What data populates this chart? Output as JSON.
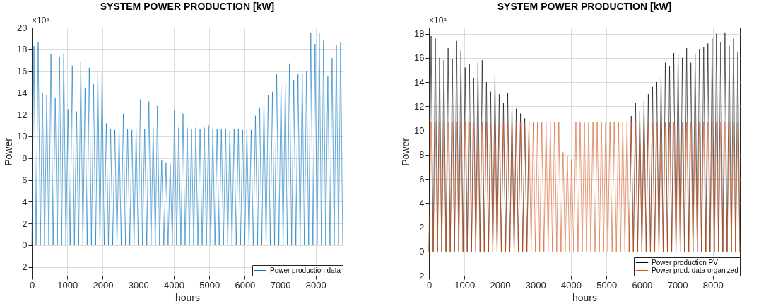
{
  "chart_data": [
    {
      "type": "line",
      "title": "SYSTEM POWER PRODUCTION [kW]",
      "xlabel": "hours",
      "ylabel": "Power",
      "annotations": [
        "×10⁴"
      ],
      "x": [
        0,
        60,
        120,
        180,
        240,
        300,
        360,
        420,
        480,
        540,
        600,
        660,
        720,
        780,
        840,
        900,
        960,
        1020,
        1080,
        1140,
        1200,
        1260,
        1320,
        1380,
        1440,
        1500,
        1560,
        1620,
        1680,
        1740,
        1800,
        1860,
        1920,
        1980,
        2040,
        2100,
        2160,
        2220,
        2280,
        2340,
        2400,
        2460,
        2520,
        2580,
        2640,
        2700,
        2760,
        2820,
        2880,
        2940,
        3000,
        3060,
        3120,
        3180,
        3240,
        3300,
        3360,
        3420,
        3480,
        3540,
        3600,
        3660,
        3720,
        3780,
        3840,
        3900,
        3960,
        4020,
        4080,
        4140,
        4200,
        4260,
        4320,
        4380,
        4440,
        4500,
        4560,
        4620,
        4680,
        4740,
        4800,
        4860,
        4920,
        4980,
        5040,
        5100,
        5160,
        5220,
        5280,
        5340,
        5400,
        5460,
        5520,
        5580,
        5640,
        5700,
        5760,
        5820,
        5880,
        5940,
        6000,
        6060,
        6120,
        6180,
        6240,
        6300,
        6360,
        6420,
        6480,
        6540,
        6600,
        6660,
        6720,
        6780,
        6840,
        6900,
        6960,
        7020,
        7080,
        7140,
        7200,
        7260,
        7320,
        7380,
        7440,
        7500,
        7560,
        7620,
        7680,
        7740,
        7800,
        7860,
        7920,
        7980,
        8040,
        8100,
        8160,
        8220,
        8280,
        8340,
        8400,
        8460,
        8520,
        8580,
        8640,
        8700,
        8760
      ],
      "series": [
        {
          "name": "Power production data",
          "color": "#0072bd",
          "values": [
            0,
            18.3,
            0,
            18.7,
            0,
            14,
            0,
            13.8,
            0,
            17.6,
            0,
            13.5,
            0,
            17.3,
            0,
            17.6,
            0,
            12.5,
            0,
            16.5,
            0,
            12.3,
            0,
            16.8,
            0,
            14.4,
            0,
            16.3,
            0,
            14.8,
            0,
            16.1,
            0,
            15.9,
            0,
            11.2,
            0,
            10.7,
            0,
            10.6,
            0,
            10.6,
            0,
            12.1,
            0,
            10.7,
            0,
            10.6,
            0,
            10.7,
            0,
            13.4,
            0,
            10.7,
            0,
            13.2,
            0,
            10.8,
            0,
            12.8,
            0,
            7.8,
            0,
            7.6,
            0,
            7.5,
            0,
            12.4,
            0,
            10.8,
            0,
            12.1,
            0,
            10.8,
            0,
            10.7,
            0,
            10.8,
            0,
            10.7,
            0,
            10.8,
            0,
            11.0,
            0,
            10.7,
            0,
            10.7,
            0,
            10.7,
            0,
            10.7,
            0,
            10.6,
            0,
            10.7,
            0,
            10.7,
            0,
            10.6,
            0,
            10.7,
            0,
            10.6,
            0,
            11.9,
            0,
            12.6,
            0,
            13.1,
            0,
            13.8,
            0,
            14.1,
            0,
            15.7,
            0,
            14.8,
            0,
            15.0,
            0,
            16.7,
            0,
            15.2,
            0,
            15.7,
            0,
            15.8,
            0,
            16.0,
            0,
            19.5,
            0,
            18.5,
            0,
            19.5,
            0,
            18.8,
            0,
            15.5,
            0,
            17.2,
            0,
            18.4,
            0,
            18.7,
            0
          ]
        }
      ],
      "xlim": [
        0,
        8760
      ],
      "xticks": [
        0,
        1000,
        2000,
        3000,
        4000,
        5000,
        6000,
        7000,
        8000
      ],
      "ylim": [
        -2.8,
        20
      ],
      "yticks": [
        -2,
        0,
        2,
        4,
        6,
        8,
        10,
        12,
        14,
        16,
        18,
        20
      ],
      "grid": true,
      "legend": "bottom right",
      "marker": "none",
      "line_style": "solid"
    },
    {
      "type": "line",
      "title": "SYSTEM POWER PRODUCTION [kW]",
      "xlabel": "hours",
      "ylabel": "Power",
      "annotations": [
        "×10⁴"
      ],
      "x": [
        0,
        60,
        120,
        180,
        240,
        300,
        360,
        420,
        480,
        540,
        600,
        660,
        720,
        780,
        840,
        900,
        960,
        1020,
        1080,
        1140,
        1200,
        1260,
        1320,
        1380,
        1440,
        1500,
        1560,
        1620,
        1680,
        1740,
        1800,
        1860,
        1920,
        1980,
        2040,
        2100,
        2160,
        2220,
        2280,
        2340,
        2400,
        2460,
        2520,
        2580,
        2640,
        2700,
        2760,
        2820,
        2880,
        2940,
        3000,
        3060,
        3120,
        3180,
        3240,
        3300,
        3360,
        3420,
        3480,
        3540,
        3600,
        3660,
        3720,
        3780,
        3840,
        3900,
        3960,
        4020,
        4080,
        4140,
        4200,
        4260,
        4320,
        4380,
        4440,
        4500,
        4560,
        4620,
        4680,
        4740,
        4800,
        4860,
        4920,
        4980,
        5040,
        5100,
        5160,
        5220,
        5280,
        5340,
        5400,
        5460,
        5520,
        5580,
        5640,
        5700,
        5760,
        5820,
        5880,
        5940,
        6000,
        6060,
        6120,
        6180,
        6240,
        6300,
        6360,
        6420,
        6480,
        6540,
        6600,
        6660,
        6720,
        6780,
        6840,
        6900,
        6960,
        7020,
        7080,
        7140,
        7200,
        7260,
        7320,
        7380,
        7440,
        7500,
        7560,
        7620,
        7680,
        7740,
        7800,
        7860,
        7920,
        7980,
        8040,
        8100,
        8160,
        8220,
        8280,
        8340,
        8400,
        8460,
        8520,
        8580,
        8640,
        8700,
        8760
      ],
      "series": [
        {
          "name": "Power production PV",
          "color": "#000000",
          "values": [
            0,
            17.8,
            0,
            17.6,
            0,
            16,
            0,
            15.8,
            0,
            16.8,
            0,
            15.9,
            0,
            17.4,
            0,
            16.6,
            0,
            15.2,
            0,
            15.5,
            0,
            14.3,
            0,
            15.6,
            0,
            15.8,
            0,
            14.0,
            0,
            13.2,
            0,
            14.6,
            0,
            13.0,
            0,
            12.3,
            0,
            13.1,
            0,
            12.0,
            0,
            11.8,
            0,
            11.4,
            0,
            11.0,
            0,
            10.8,
            null,
            null,
            null,
            null,
            null,
            null,
            null,
            null,
            null,
            null,
            null,
            null,
            null,
            null,
            null,
            null,
            null,
            null,
            null,
            null,
            null,
            null,
            null,
            null,
            null,
            null,
            null,
            null,
            null,
            null,
            null,
            null,
            null,
            null,
            null,
            null,
            null,
            null,
            null,
            null,
            null,
            null,
            null,
            null,
            null,
            null,
            0,
            11.2,
            0,
            12.3,
            0,
            11.6,
            0,
            12.4,
            0,
            13.0,
            0,
            13.6,
            0,
            14.0,
            0,
            14.6,
            0,
            15.6,
            0,
            15.3,
            0,
            16.4,
            0,
            16.3,
            0,
            16.0,
            0,
            16.8,
            0,
            15.6,
            0,
            16.3,
            0,
            16.7,
            0,
            16.9,
            0,
            17.2,
            0,
            17.6,
            0,
            18.0,
            0,
            17.3,
            0,
            18.1,
            0,
            17.0,
            0,
            17.6,
            0,
            16.5,
            0
          ]
        },
        {
          "name": "Power prod. data organized",
          "color": "#d95319",
          "values": [
            0,
            10.7,
            0,
            10.7,
            0,
            10.7,
            0,
            10.7,
            0,
            10.7,
            0,
            10.7,
            0,
            10.7,
            0,
            10.7,
            0,
            10.7,
            0,
            10.7,
            0,
            10.7,
            0,
            10.7,
            0,
            10.7,
            0,
            10.7,
            0,
            10.7,
            0,
            10.7,
            0,
            10.7,
            0,
            10.7,
            0,
            10.7,
            0,
            10.7,
            0,
            10.7,
            0,
            10.7,
            0,
            10.7,
            0,
            10.7,
            0,
            10.7,
            0,
            10.7,
            0,
            10.7,
            0,
            10.7,
            0,
            10.7,
            0,
            10.7,
            0,
            10.7,
            0,
            8.2,
            0,
            7.9,
            0,
            7.6,
            0,
            10.7,
            0,
            10.7,
            0,
            10.7,
            0,
            10.7,
            0,
            10.7,
            0,
            10.7,
            0,
            10.7,
            0,
            10.7,
            0,
            10.7,
            0,
            10.7,
            0,
            10.7,
            0,
            10.7,
            0,
            10.7,
            0,
            10.7,
            0,
            10.7,
            0,
            10.7,
            0,
            10.7,
            0,
            10.7,
            0,
            10.7,
            0,
            10.7,
            0,
            10.7,
            0,
            10.7,
            0,
            10.7,
            0,
            10.7,
            0,
            10.7,
            0,
            10.7,
            0,
            10.7,
            0,
            10.7,
            0,
            10.7,
            0,
            10.7,
            0,
            10.7,
            0,
            10.7,
            0,
            10.7,
            0,
            10.7,
            0,
            10.7,
            0,
            10.7,
            0,
            10.7,
            0,
            10.7,
            0,
            10.7,
            0
          ]
        }
      ],
      "xlim": [
        0,
        8760
      ],
      "xticks": [
        0,
        1000,
        2000,
        3000,
        4000,
        5000,
        6000,
        7000,
        8000
      ],
      "ylim": [
        -2,
        18.5
      ],
      "yticks": [
        -2,
        0,
        2,
        4,
        6,
        8,
        10,
        12,
        14,
        16,
        18
      ],
      "grid": true,
      "legend": "bottom right",
      "marker": "none",
      "line_style": "solid"
    }
  ]
}
